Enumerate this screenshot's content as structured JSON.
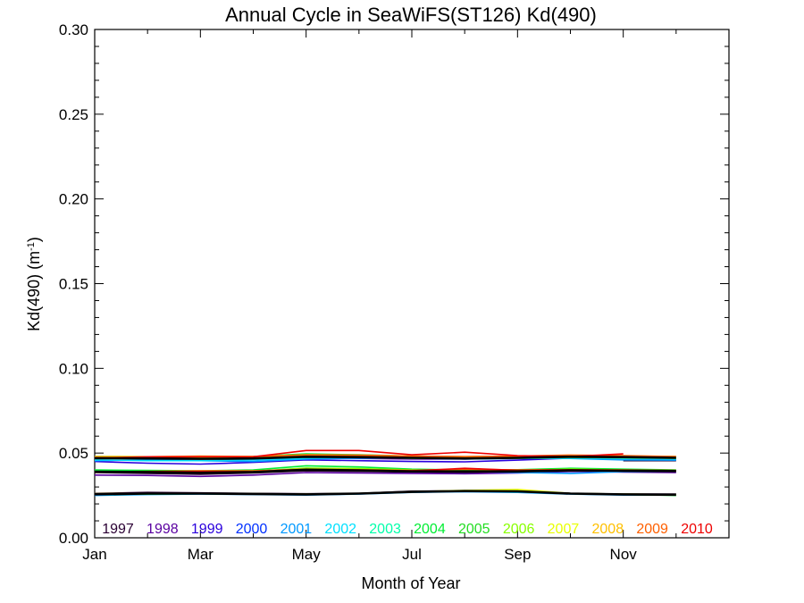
{
  "chart_data": {
    "type": "line",
    "title": "Annual Cycle in SeaWiFS(ST126) Kd(490)",
    "xlabel": "Month of Year",
    "ylabel_main": "Kd(490) (m",
    "ylabel_sup": "-1",
    "ylabel_close": ")",
    "xlim": [
      1,
      13
    ],
    "ylim": [
      0,
      0.3
    ],
    "x_ticks": [
      {
        "value": 1,
        "label": "Jan"
      },
      {
        "value": 3,
        "label": "Mar"
      },
      {
        "value": 5,
        "label": "May"
      },
      {
        "value": 7,
        "label": "Jul"
      },
      {
        "value": 9,
        "label": "Sep"
      },
      {
        "value": 11,
        "label": "Nov"
      }
    ],
    "y_ticks": [
      {
        "value": 0.0,
        "label": "0.00"
      },
      {
        "value": 0.05,
        "label": "0.05"
      },
      {
        "value": 0.1,
        "label": "0.10"
      },
      {
        "value": 0.15,
        "label": "0.15"
      },
      {
        "value": 0.2,
        "label": "0.20"
      },
      {
        "value": 0.25,
        "label": "0.25"
      },
      {
        "value": 0.3,
        "label": "0.30"
      }
    ],
    "x": [
      1,
      2,
      3,
      4,
      5,
      6,
      7,
      8,
      9,
      10,
      11,
      12
    ],
    "series": [
      {
        "name": "1997",
        "color": "#2a0033",
        "values": [
          null,
          null,
          null,
          null,
          null,
          null,
          null,
          null,
          null,
          null,
          0.0455,
          0.0455
        ]
      },
      {
        "name": "1998",
        "color": "#5a00a0",
        "values": [
          0.0475,
          0.047,
          0.0468,
          0.047,
          0.0475,
          0.0468,
          0.0465,
          0.0465,
          0.0468,
          0.0472,
          0.0475,
          0.047
        ]
      },
      {
        "name": "1999",
        "color": "#2a00dd",
        "values": [
          0.045,
          0.044,
          0.0435,
          0.0445,
          0.046,
          0.0455,
          0.045,
          0.0448,
          0.0458,
          0.047,
          0.0465,
          0.046
        ]
      },
      {
        "name": "2000",
        "color": "#0030ff",
        "values": [
          0.0478,
          0.0475,
          0.047,
          0.0468,
          0.0475,
          0.0478,
          0.047,
          0.0465,
          0.047,
          0.0478,
          0.048,
          0.0475
        ]
      },
      {
        "name": "2001",
        "color": "#0099ff",
        "values": [
          0.0455,
          0.046,
          0.0455,
          0.045,
          0.0465,
          0.047,
          0.0472,
          0.0468,
          0.047,
          0.0468,
          0.046,
          0.0458
        ]
      },
      {
        "name": "2002",
        "color": "#00e0ff",
        "values": [
          0.046,
          0.0455,
          0.0455,
          0.046,
          0.047,
          0.0475,
          0.047,
          0.0465,
          0.0468,
          0.047,
          0.0468,
          0.0465
        ]
      },
      {
        "name": "2003",
        "color": "#00ffaa",
        "values": [
          0.047,
          0.0472,
          0.0468,
          0.047,
          0.048,
          0.0478,
          0.0475,
          0.047,
          0.0472,
          0.0478,
          0.0475,
          0.047
        ]
      },
      {
        "name": "2004",
        "color": "#00ee33",
        "values": [
          0.048,
          0.0478,
          0.0475,
          0.048,
          0.0495,
          0.049,
          0.0482,
          0.0478,
          0.048,
          0.0485,
          0.048,
          0.0478
        ]
      },
      {
        "name": "2005",
        "color": "#22dd22",
        "values": [
          0.0472,
          0.047,
          0.0468,
          0.0472,
          0.0485,
          0.048,
          0.0475,
          0.047,
          0.0475,
          0.048,
          0.0478,
          0.0475
        ]
      },
      {
        "name": "2006",
        "color": "#88ff00",
        "values": [
          0.047,
          0.0468,
          0.047,
          0.0468,
          0.0478,
          0.0475,
          0.047,
          0.0468,
          0.047,
          0.0475,
          0.0472,
          0.047
        ]
      },
      {
        "name": "2007",
        "color": "#e8ff00",
        "values": [
          0.0475,
          0.0472,
          0.047,
          0.0475,
          0.0482,
          0.0478,
          0.0475,
          0.0472,
          0.0478,
          0.0482,
          0.048,
          0.0478
        ]
      },
      {
        "name": "2008",
        "color": "#ffc000",
        "values": [
          0.048,
          0.0478,
          0.0482,
          0.048,
          0.0488,
          0.0485,
          0.048,
          0.0478,
          0.048,
          0.0485,
          0.0482,
          0.048
        ]
      },
      {
        "name": "2009",
        "color": "#ff6000",
        "values": [
          0.0475,
          0.0472,
          0.0478,
          0.048,
          0.049,
          0.0488,
          0.0482,
          0.048,
          0.0482,
          0.0488,
          0.0485,
          0.048
        ]
      },
      {
        "name": "2010",
        "color": "#ee0000",
        "values": [
          0.047,
          0.0478,
          0.048,
          0.0478,
          0.0515,
          0.0515,
          0.049,
          0.0505,
          0.0485,
          0.048,
          0.0495,
          null
        ]
      }
    ],
    "lower_bands": [
      {
        "color": "#2a0033",
        "values": [
          0.0385,
          0.038,
          0.0375,
          0.0382,
          0.0395,
          0.0392,
          0.0388,
          0.0385,
          0.039,
          0.0398,
          0.0395,
          0.039
        ]
      },
      {
        "color": "#5a00a0",
        "values": [
          0.037,
          0.0368,
          0.0362,
          0.037,
          0.0385,
          0.0382,
          0.038,
          0.0378,
          0.0382,
          0.0392,
          0.0388,
          0.0385
        ]
      },
      {
        "color": "#0099ff",
        "values": [
          0.0395,
          0.0392,
          0.0388,
          0.0392,
          0.041,
          0.0405,
          0.0398,
          0.0392,
          0.0385,
          0.038,
          0.039,
          0.0392
        ]
      },
      {
        "color": "#00ee33",
        "values": [
          0.04,
          0.0398,
          0.0395,
          0.04,
          0.0425,
          0.0418,
          0.0405,
          0.04,
          0.0402,
          0.041,
          0.0405,
          0.04
        ]
      },
      {
        "color": "#88ff00",
        "values": [
          0.0392,
          0.039,
          0.0388,
          0.0392,
          0.0412,
          0.0408,
          0.04,
          0.0395,
          0.0398,
          0.0405,
          0.04,
          0.0395
        ]
      },
      {
        "color": "#ff6000",
        "values": [
          0.039,
          0.0392,
          0.0395,
          0.0395,
          0.0405,
          0.0402,
          0.0398,
          0.0405,
          0.04,
          0.0402,
          0.04,
          0.0398
        ]
      },
      {
        "color": "#ee0000",
        "values": [
          0.0388,
          0.039,
          0.0392,
          0.039,
          0.04,
          0.0398,
          0.0395,
          0.041,
          0.0398,
          0.04,
          0.0398,
          0.0395
        ]
      }
    ],
    "bottom_bands": [
      {
        "color": "#2a0033",
        "values": [
          0.0262,
          0.0268,
          0.0265,
          0.0262,
          0.026,
          0.0262,
          0.0275,
          0.0278,
          0.0272,
          0.0262,
          0.0258,
          0.0258
        ]
      },
      {
        "color": "#0099ff",
        "values": [
          0.025,
          0.0255,
          0.0258,
          0.0255,
          0.0252,
          0.0258,
          0.0268,
          0.0272,
          0.0268,
          0.0258,
          0.0252,
          0.0252
        ]
      },
      {
        "color": "#00ee33",
        "values": [
          0.0255,
          0.0258,
          0.026,
          0.0258,
          0.0255,
          0.026,
          0.027,
          0.0275,
          0.0272,
          0.026,
          0.0255,
          0.025
        ]
      },
      {
        "color": "#e8ff00",
        "values": [
          0.026,
          0.0262,
          0.0262,
          0.026,
          0.0258,
          0.0262,
          0.0272,
          0.028,
          0.0285,
          0.0262,
          0.0258,
          0.0255
        ]
      }
    ],
    "mean_lines": [
      {
        "color": "#000000",
        "values": [
          0.047,
          0.0468,
          0.0466,
          0.0468,
          0.0478,
          0.0476,
          0.0472,
          0.0468,
          0.0472,
          0.0478,
          0.0476,
          0.0472
        ]
      },
      {
        "color": "#000000",
        "values": [
          0.039,
          0.0388,
          0.0384,
          0.0388,
          0.0402,
          0.0398,
          0.0392,
          0.0392,
          0.0392,
          0.0398,
          0.0396,
          0.0394
        ]
      },
      {
        "color": "#000000",
        "values": [
          0.0257,
          0.0261,
          0.0261,
          0.0259,
          0.0256,
          0.0261,
          0.0271,
          0.0276,
          0.0274,
          0.0261,
          0.0256,
          0.0254
        ]
      }
    ],
    "legend_placement": "bottom-inside"
  }
}
